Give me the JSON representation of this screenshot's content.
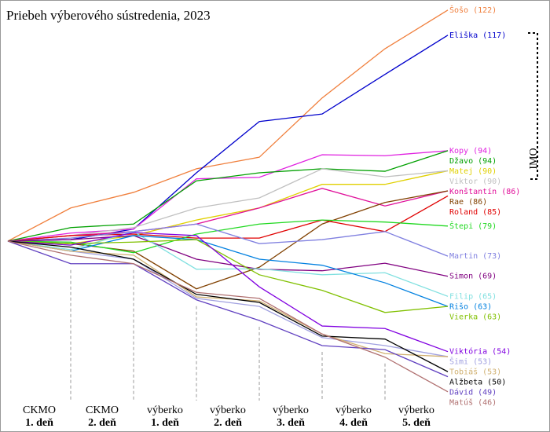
{
  "chart_data": {
    "type": "line",
    "title": "Priebeh výberového sústredenia, 2023",
    "categories": [
      null,
      [
        "CKMO",
        "1. deň"
      ],
      [
        "CKMO",
        "2. deň"
      ],
      [
        "výberko",
        "1. deň"
      ],
      [
        "výberko",
        "2. deň"
      ],
      [
        "výberko",
        "3. deň"
      ],
      [
        "výberko",
        "4. deň"
      ],
      [
        "výberko",
        "5. deň"
      ]
    ],
    "ylim": [
      38,
      124
    ],
    "annotation": "IMO",
    "series": [
      {
        "name": "Šošo",
        "color": "#f07f3c",
        "values": [
          76.0,
          82.6,
          85.7,
          90.4,
          92.7,
          104.5,
          114.3,
          122
        ],
        "value_labels": [
          null,
          null,
          null,
          null,
          null,
          null,
          null,
          "(122)"
        ]
      },
      {
        "name": "Eliška",
        "color": "#0000cc",
        "values": [
          76.0,
          76.3,
          78.4,
          89.6,
          99.8,
          101.3,
          109.2,
          117
        ],
        "value_labels": [
          null,
          null,
          null,
          null,
          null,
          null,
          null,
          "(117)"
        ]
      },
      {
        "name": "Kopy",
        "color": "#e020e0",
        "values": [
          76.0,
          77.6,
          78.4,
          88.4,
          88.7,
          93.2,
          93.0,
          94
        ],
        "value_labels": [
          null,
          null,
          null,
          null,
          null,
          null,
          null,
          "(94)"
        ]
      },
      {
        "name": "Džavo",
        "color": "#00a000",
        "values": [
          76.0,
          78.7,
          79.4,
          88.0,
          89.6,
          90.4,
          89.9,
          94
        ],
        "value_labels": [
          null,
          null,
          null,
          null,
          null,
          null,
          null,
          "(94)"
        ]
      },
      {
        "name": "Matej",
        "color": "#e0d000",
        "values": [
          76.0,
          75.5,
          77.1,
          80.2,
          82.6,
          87.3,
          87.3,
          90
        ],
        "value_labels": [
          null,
          null,
          null,
          null,
          null,
          null,
          null,
          "(90)"
        ]
      },
      {
        "name": "Viktor",
        "color": "#c0c0c0",
        "values": [
          76.0,
          77.1,
          78.7,
          82.6,
          84.6,
          90.4,
          88.8,
          90
        ],
        "value_labels": [
          null,
          null,
          null,
          null,
          null,
          null,
          null,
          "(90)"
        ]
      },
      {
        "name": "Konštantín",
        "color": "#e0109a",
        "values": [
          76.0,
          77.1,
          77.9,
          79.4,
          82.6,
          86.5,
          83.0,
          86
        ],
        "value_labels": [
          null,
          null,
          null,
          null,
          null,
          null,
          null,
          "(86)"
        ]
      },
      {
        "name": "Rae",
        "color": "#804000",
        "values": [
          76.0,
          75.5,
          74.0,
          66.5,
          70.8,
          79.4,
          83.7,
          86
        ],
        "value_labels": [
          null,
          null,
          null,
          null,
          null,
          null,
          null,
          "(86)"
        ]
      },
      {
        "name": "Roland",
        "color": "#e00000",
        "values": [
          76.0,
          77.1,
          77.4,
          76.6,
          76.6,
          80.2,
          77.9,
          85
        ],
        "value_labels": [
          null,
          null,
          null,
          null,
          null,
          null,
          null,
          "(85)"
        ]
      },
      {
        "name": "Štepi",
        "color": "#20d820",
        "values": [
          76.0,
          75.8,
          73.7,
          77.4,
          79.4,
          80.2,
          79.8,
          79
        ],
        "value_labels": [
          null,
          null,
          null,
          null,
          null,
          null,
          null,
          "(79)"
        ]
      },
      {
        "name": "Martin",
        "color": "#8080e0",
        "values": [
          76.0,
          76.6,
          77.9,
          79.4,
          75.5,
          76.3,
          77.9,
          73
        ],
        "value_labels": [
          null,
          null,
          null,
          null,
          null,
          null,
          null,
          "(73)"
        ]
      },
      {
        "name": "Simon",
        "color": "#800080",
        "values": [
          76.0,
          76.3,
          77.1,
          72.4,
          70.4,
          70.1,
          71.6,
          69
        ],
        "value_labels": [
          null,
          null,
          null,
          null,
          null,
          null,
          null,
          "(69)"
        ]
      },
      {
        "name": "Filip",
        "color": "#80e0e0",
        "values": [
          76.0,
          74.3,
          77.9,
          70.4,
          70.5,
          69.3,
          69.7,
          65
        ],
        "value_labels": [
          null,
          null,
          null,
          null,
          null,
          null,
          null,
          "(65)"
        ]
      },
      {
        "name": "Rišo",
        "color": "#0080e0",
        "values": [
          76.0,
          74.0,
          77.1,
          76.3,
          72.4,
          71.2,
          67.7,
          63
        ],
        "value_labels": [
          null,
          null,
          null,
          null,
          null,
          null,
          null,
          "(63)"
        ]
      },
      {
        "name": "Vierka",
        "color": "#80c000",
        "values": [
          76.0,
          75.5,
          75.8,
          76.3,
          69.3,
          66.2,
          61.8,
          63
        ],
        "value_labels": [
          null,
          null,
          null,
          null,
          null,
          null,
          null,
          "(63)"
        ]
      },
      {
        "name": "Viktória",
        "color": "#8000e0",
        "values": [
          76.0,
          75.2,
          77.7,
          77.1,
          66.9,
          59.1,
          58.6,
          54
        ],
        "value_labels": [
          null,
          null,
          null,
          null,
          null,
          null,
          null,
          "(54)"
        ]
      },
      {
        "name": "Šimi",
        "color": "#a0a0e0",
        "values": [
          76.0,
          74.0,
          72.4,
          64.6,
          63.0,
          56.8,
          55.2,
          53
        ],
        "value_labels": [
          null,
          null,
          null,
          null,
          null,
          null,
          null,
          "(53)"
        ]
      },
      {
        "name": "Tobiáš",
        "color": "#d0b070",
        "values": [
          76.0,
          74.0,
          73.2,
          64.9,
          64.1,
          57.5,
          53.6,
          53
        ],
        "value_labels": [
          null,
          null,
          null,
          null,
          null,
          null,
          null,
          "(53)"
        ]
      },
      {
        "name": "Alžbeta",
        "color": "#000000",
        "values": [
          76.0,
          74.8,
          72.4,
          65.4,
          63.8,
          57.1,
          56.5,
          50
        ],
        "value_labels": [
          null,
          null,
          null,
          null,
          null,
          null,
          null,
          "(50)"
        ]
      },
      {
        "name": "Dávid",
        "color": "#6040c0",
        "values": [
          76.0,
          71.5,
          71.5,
          64.3,
          60.2,
          55.2,
          54.4,
          49
        ],
        "value_labels": [
          null,
          null,
          null,
          null,
          null,
          null,
          null,
          "(49)"
        ]
      },
      {
        "name": "Matúš",
        "color": "#b07070",
        "values": [
          76.0,
          73.2,
          71.5,
          65.8,
          64.6,
          57.5,
          52.9,
          46
        ],
        "value_labels": [
          null,
          null,
          null,
          null,
          null,
          null,
          null,
          "(46)"
        ]
      }
    ]
  }
}
